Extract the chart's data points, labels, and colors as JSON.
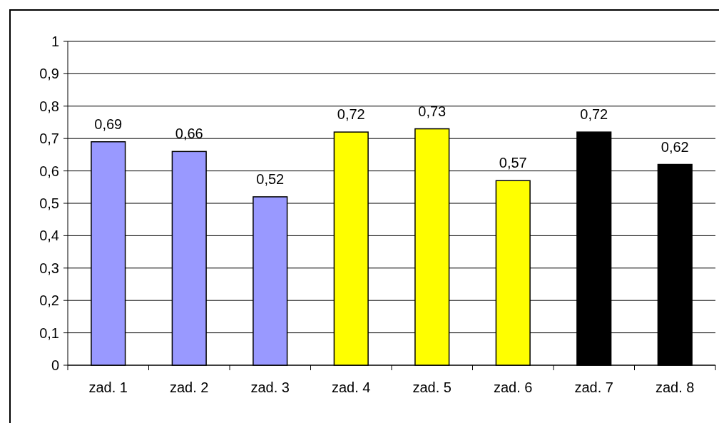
{
  "chart_data": {
    "type": "bar",
    "categories": [
      "zad. 1",
      "zad. 2",
      "zad. 3",
      "zad. 4",
      "zad. 5",
      "zad. 6",
      "zad. 7",
      "zad. 8"
    ],
    "values": [
      0.69,
      0.66,
      0.52,
      0.72,
      0.73,
      0.57,
      0.72,
      0.62
    ],
    "colors": [
      "#9999ff",
      "#9999ff",
      "#9999ff",
      "#ffff00",
      "#ffff00",
      "#ffff00",
      "#000000",
      "#000000"
    ],
    "ylim": [
      0,
      1
    ],
    "yticks": [
      0,
      {
        "value": 0.1,
        "label": "0,1"
      },
      {
        "value": 0.2,
        "label": "0,2"
      },
      {
        "value": 0.3,
        "label": "0,3"
      },
      {
        "value": 0.4,
        "label": "0,4"
      },
      {
        "value": 0.5,
        "label": "0,5"
      },
      {
        "value": 0.6,
        "label": "0,6"
      },
      {
        "value": 0.7,
        "label": "0,7"
      },
      {
        "value": 0.8,
        "label": "0,8"
      },
      {
        "value": 0.9,
        "label": "0,9"
      },
      1
    ],
    "value_labels": [
      "0,69",
      "0,66",
      "0,52",
      "0,72",
      "0,73",
      "0,57",
      "0,72",
      "0,62"
    ],
    "grid": "y"
  }
}
